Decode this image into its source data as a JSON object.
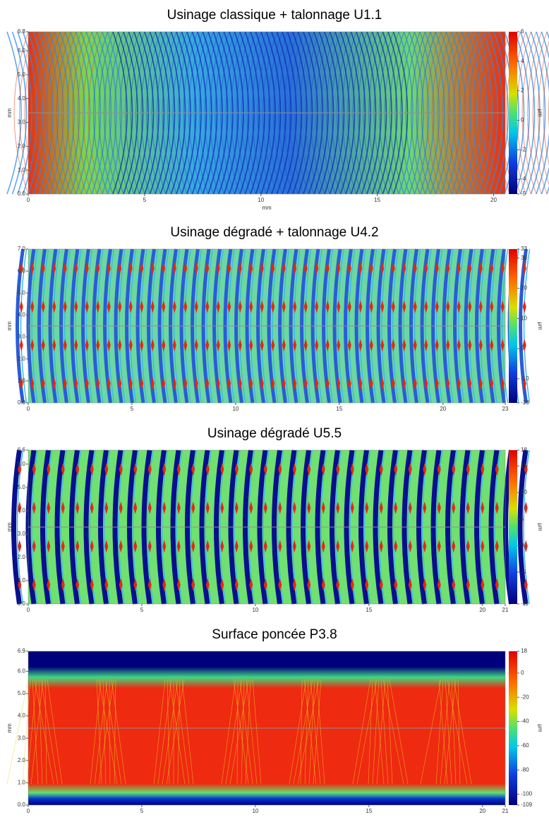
{
  "chart_data": [
    {
      "type": "heatmap",
      "title": "Usinage classique + talonnage U1.1",
      "xlabel": "mm",
      "ylabel": "mm",
      "zlabel": "µm",
      "xlim": [
        0,
        20.5
      ],
      "xticks": [
        0,
        5,
        10,
        15,
        20
      ],
      "ylim": [
        0,
        6.8
      ],
      "yticks": [
        {
          "value": 0,
          "label": "0.0"
        },
        {
          "value": 1,
          "label": "1.0"
        },
        {
          "value": 2,
          "label": "2.0"
        },
        {
          "value": 3,
          "label": "3.0"
        },
        {
          "value": 4,
          "label": "4.0"
        },
        {
          "value": 5,
          "label": "5.0"
        },
        {
          "value": 6,
          "label": "6.0"
        },
        6.8
      ],
      "zlim": [
        -5,
        6
      ],
      "zticks": [
        6,
        4,
        2,
        0,
        -2,
        -4,
        -5
      ]
    },
    {
      "type": "heatmap",
      "title": "Usinage dégradé + talonnage U4.2",
      "ylabel": "mm",
      "zlabel": "µm",
      "xlim": [
        0,
        23
      ],
      "xticks": [
        0,
        5,
        10,
        15,
        20,
        23
      ],
      "ylim": [
        0,
        7
      ],
      "yticks": [
        {
          "value": 0,
          "label": "0.0"
        },
        {
          "value": 1,
          "label": "1.0"
        },
        {
          "value": 2,
          "label": "2.0"
        },
        {
          "value": 3,
          "label": "3.0"
        },
        {
          "value": 4,
          "label": "4.0"
        },
        {
          "value": 5,
          "label": "5.0"
        },
        {
          "value": 6,
          "label": "6.0"
        },
        {
          "value": 7,
          "label": "7.0"
        }
      ],
      "zlim": [
        -18,
        33
      ],
      "zticks": [
        33,
        30,
        20,
        10,
        0,
        -10,
        -18
      ]
    },
    {
      "type": "heatmap",
      "title": "Usinage dégradé U5.5",
      "ylabel": "mm",
      "zlabel": "µm",
      "xlim": [
        0,
        21
      ],
      "xticks": [
        0,
        5,
        10,
        15,
        20,
        21
      ],
      "ylim": [
        0,
        6.6
      ],
      "yticks": [
        {
          "value": 0,
          "label": "0.0"
        },
        {
          "value": 1,
          "label": "1.0"
        },
        {
          "value": 2,
          "label": "2.0"
        },
        {
          "value": 3,
          "label": "3.0"
        },
        {
          "value": 4,
          "label": "4.0"
        },
        {
          "value": 5,
          "label": "5.0"
        },
        {
          "value": 6,
          "label": "6.0"
        },
        6.6
      ],
      "zlim": [
        -11,
        18
      ],
      "zticks": [
        18,
        15,
        10,
        5,
        0,
        -5,
        -11
      ]
    },
    {
      "type": "heatmap",
      "title": "Surface poncée P3.8",
      "ylabel": "mm",
      "zlabel": "µm",
      "xlim": [
        0,
        21
      ],
      "xticks": [
        0,
        5,
        10,
        15,
        20,
        21
      ],
      "ylim": [
        0,
        6.9
      ],
      "yticks": [
        {
          "value": 0,
          "label": "0.0"
        },
        {
          "value": 1,
          "label": "1.0"
        },
        {
          "value": 2,
          "label": "2.0"
        },
        {
          "value": 3,
          "label": "3.0"
        },
        {
          "value": 4,
          "label": "4.0"
        },
        {
          "value": 5,
          "label": "5.0"
        },
        {
          "value": 6,
          "label": "6.0"
        },
        6.9
      ],
      "zlim": [
        -109,
        18
      ],
      "zticks": [
        18,
        0,
        -20,
        -40,
        -60,
        -80,
        -100,
        -109
      ]
    }
  ]
}
